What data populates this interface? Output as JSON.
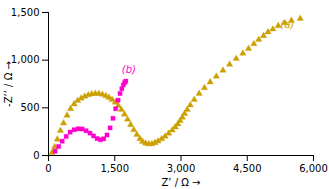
{
  "chart_data": {
    "type": "scatter",
    "xlabel": "Z’ / Ω",
    "ylabel": "-Z’’ / Ω",
    "xlim": [
      0,
      6000
    ],
    "ylim": [
      0,
      1500
    ],
    "xticks": [
      0,
      1500,
      3000,
      4500,
      6000
    ],
    "yticks": [
      0,
      500,
      1000,
      1500
    ],
    "series": [
      {
        "name": "(a)",
        "color": "#CCA000",
        "marker": "triangle",
        "x": [
          80,
          140,
          200,
          270,
          340,
          420,
          500,
          580,
          660,
          740,
          820,
          900,
          980,
          1060,
          1140,
          1220,
          1300,
          1370,
          1440,
          1510,
          1580,
          1650,
          1720,
          1790,
          1860,
          1930,
          2000,
          2070,
          2130,
          2200,
          2270,
          2340,
          2410,
          2480,
          2560,
          2640,
          2720,
          2800,
          2870,
          2930,
          2980,
          3030,
          3080,
          3140,
          3210,
          3300,
          3410,
          3530,
          3660,
          3800,
          3950,
          4100,
          4250,
          4400,
          4530,
          4650,
          4760,
          4870,
          4970,
          5080,
          5200,
          5350,
          5500,
          5700
        ],
        "values": [
          30,
          90,
          170,
          260,
          340,
          420,
          490,
          540,
          575,
          600,
          620,
          635,
          645,
          650,
          648,
          640,
          625,
          608,
          585,
          558,
          522,
          480,
          432,
          378,
          322,
          268,
          218,
          175,
          145,
          128,
          120,
          122,
          133,
          150,
          173,
          200,
          232,
          265,
          298,
          330,
          365,
          400,
          438,
          480,
          528,
          585,
          648,
          710,
          770,
          830,
          893,
          955,
          1015,
          1070,
          1120,
          1170,
          1215,
          1255,
          1295,
          1325,
          1360,
          1390,
          1415,
          1435
        ]
      },
      {
        "name": "(b)",
        "color": "#FF00CC",
        "marker": "square",
        "x": [
          150,
          230,
          310,
          400,
          490,
          580,
          670,
          760,
          850,
          940,
          1020,
          1100,
          1175,
          1250,
          1325,
          1395,
          1460,
          1520,
          1575,
          1620,
          1660,
          1695,
          1725,
          1750
        ],
        "values": [
          45,
          95,
          150,
          200,
          245,
          270,
          280,
          278,
          260,
          235,
          205,
          178,
          165,
          175,
          215,
          290,
          390,
          490,
          580,
          650,
          700,
          740,
          765,
          780
        ]
      }
    ]
  }
}
